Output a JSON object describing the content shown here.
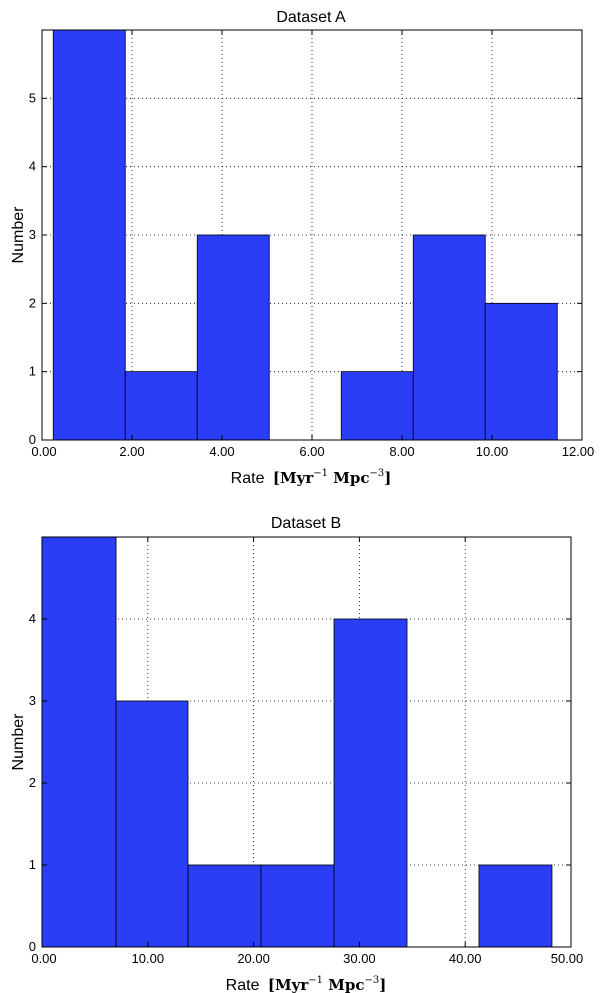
{
  "chart_data": [
    {
      "type": "bar",
      "title": "Dataset A",
      "xlabel": "Rate",
      "xlabel_unit_base": "[Myr",
      "xlabel_unit_exp1": "−1",
      "xlabel_unit_mid": " Mpc",
      "xlabel_unit_exp2": "−3",
      "xlabel_unit_end": "]",
      "ylabel": "Number",
      "xlim": [
        0,
        12
      ],
      "ylim": [
        0,
        6
      ],
      "x_ticks": [
        0,
        2,
        4,
        6,
        8,
        10,
        12
      ],
      "x_tick_labels": [
        "0.00",
        "2.00",
        "4.00",
        "6.00",
        "8.00",
        "10.00",
        "12.00"
      ],
      "y_ticks": [
        0,
        1,
        2,
        3,
        4,
        5
      ],
      "y_tick_labels": [
        "0",
        "1",
        "2",
        "3",
        "4",
        "5"
      ],
      "grid": true,
      "bins": [
        {
          "start": 0.25,
          "end": 1.85,
          "count": 6
        },
        {
          "start": 1.85,
          "end": 3.45,
          "count": 1
        },
        {
          "start": 3.45,
          "end": 5.05,
          "count": 3
        },
        {
          "start": 5.05,
          "end": 6.65,
          "count": 0
        },
        {
          "start": 6.65,
          "end": 8.25,
          "count": 1
        },
        {
          "start": 8.25,
          "end": 9.85,
          "count": 3
        },
        {
          "start": 9.85,
          "end": 11.45,
          "count": 2
        }
      ],
      "bar_color": "#2a3ef5"
    },
    {
      "type": "bar",
      "title": "Dataset B",
      "xlabel": "Rate",
      "xlabel_unit_base": "[Myr",
      "xlabel_unit_exp1": "−1",
      "xlabel_unit_mid": " Mpc",
      "xlabel_unit_exp2": "−3",
      "xlabel_unit_end": "]",
      "ylabel": "Number",
      "xlim": [
        0,
        50
      ],
      "ylim": [
        0,
        5
      ],
      "x_ticks": [
        0,
        10,
        20,
        30,
        40,
        50
      ],
      "x_tick_labels": [
        "0.00",
        "10.00",
        "20.00",
        "30.00",
        "40.00",
        "50.00"
      ],
      "y_ticks": [
        0,
        1,
        2,
        3,
        4
      ],
      "y_tick_labels": [
        "0",
        "1",
        "2",
        "3",
        "4"
      ],
      "grid": true,
      "bins": [
        {
          "start": 0,
          "end": 7.0,
          "count": 5
        },
        {
          "start": 7.0,
          "end": 13.8,
          "count": 3
        },
        {
          "start": 13.8,
          "end": 20.7,
          "count": 1
        },
        {
          "start": 20.7,
          "end": 27.6,
          "count": 1
        },
        {
          "start": 27.6,
          "end": 34.5,
          "count": 4
        },
        {
          "start": 34.5,
          "end": 41.3,
          "count": 0
        },
        {
          "start": 41.3,
          "end": 48.2,
          "count": 1
        }
      ],
      "bar_color": "#2a3ef5"
    }
  ]
}
